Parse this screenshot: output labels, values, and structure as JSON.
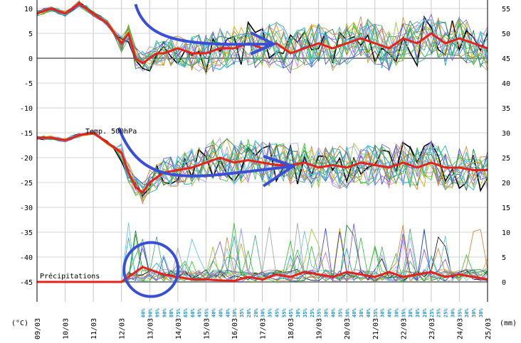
{
  "chart_data": {
    "type": "line",
    "x_dates": [
      "09/03",
      "10/03",
      "11/03",
      "12/03",
      "13/03",
      "14/03",
      "15/03",
      "16/03",
      "17/03",
      "18/03",
      "19/03",
      "20/03",
      "21/03",
      "22/03",
      "23/03",
      "24/03",
      "25/03"
    ],
    "left_ticks": [
      10,
      5,
      0,
      -5,
      -10,
      -15,
      -20,
      -25,
      -30,
      -35,
      -40,
      -45
    ],
    "right_ticks": [
      55,
      50,
      45,
      40,
      35,
      30,
      25,
      20,
      15,
      10,
      5,
      0
    ],
    "left_unit": "(°C)",
    "right_unit": "(mm)",
    "labels": {
      "temp500": "Temp. 500hPa",
      "precip": "Précipitations"
    },
    "precip_probabilities": [
      "60%",
      "90%",
      "95%",
      "90%",
      "80%",
      "75%",
      "65%",
      "60%",
      "45%",
      "45%",
      "40%",
      "40%",
      "40%",
      "30%",
      "35%",
      "20%",
      "20%",
      "30%",
      "35%",
      "45%",
      "55%",
      "45%",
      "30%",
      "35%",
      "25%",
      "35%",
      "30%",
      "40%",
      "35%",
      "30%",
      "40%",
      "30%",
      "40%",
      "35%",
      "30%",
      "40%",
      "30%",
      "35%",
      "30%",
      "30%",
      "20%",
      "25%",
      "25%",
      "25%",
      "30%",
      "35%",
      "30%",
      "30%",
      "30%"
    ],
    "series": [
      {
        "color": "#e8211c",
        "x": [
          0,
          0.5,
          1,
          1.5,
          2,
          2.5,
          3,
          3.25,
          3.5,
          3.75,
          4,
          4.25,
          4.5,
          5,
          5.5,
          6,
          6.5,
          7,
          7.5,
          8,
          8.5,
          9,
          9.5,
          10,
          10.5,
          11,
          11.5,
          12,
          12.5,
          13,
          13.5,
          14,
          14.5,
          15,
          15.5,
          16
        ],
        "y": [
          9,
          10,
          9,
          11,
          9,
          7,
          3,
          5,
          0,
          -1,
          0,
          1,
          1,
          2,
          1,
          1,
          2,
          2,
          3,
          2,
          3,
          1,
          2,
          3,
          2,
          3,
          4,
          3,
          2,
          4,
          3,
          5,
          3,
          4,
          3,
          2
        ]
      },
      {
        "color": "#e8211c",
        "x": [
          0,
          0.5,
          1,
          1.5,
          2,
          2.5,
          3,
          3.25,
          3.5,
          3.75,
          4,
          4.25,
          4.5,
          5,
          5.5,
          6,
          6.5,
          7,
          7.5,
          8,
          8.5,
          9,
          9.5,
          10,
          10.5,
          11,
          11.5,
          12,
          12.5,
          13,
          13.5,
          14,
          14.5,
          15,
          15.5,
          16
        ],
        "y": [
          -16,
          -16,
          -16.5,
          -15.5,
          -15,
          -17,
          -19,
          -23,
          -26,
          -27,
          -25,
          -24,
          -23,
          -22.5,
          -22,
          -21,
          -20,
          -21,
          -20.5,
          -21,
          -21.5,
          -21.5,
          -21,
          -22,
          -21.5,
          -22,
          -21,
          -21.5,
          -22,
          -21,
          -22,
          -21,
          -22,
          -22,
          -22.5,
          -22.5
        ]
      },
      {
        "color": "#e8211c",
        "x": [
          0,
          0.5,
          1,
          1.5,
          2,
          2.5,
          3,
          3.25,
          3.5,
          3.75,
          4,
          4.25,
          4.5,
          5,
          5.5,
          6,
          6.5,
          7,
          7.5,
          8,
          8.5,
          9,
          9.5,
          10,
          10.5,
          11,
          11.5,
          12,
          12.5,
          13,
          13.5,
          14,
          14.5,
          15,
          15.5,
          16
        ],
        "y": [
          0,
          0,
          0,
          0,
          0,
          0,
          0,
          1,
          2,
          3,
          2.5,
          2,
          1.5,
          1,
          0.5,
          0.5,
          0.3,
          0.2,
          1,
          0.5,
          1.5,
          1,
          2,
          1.5,
          1,
          2,
          1.5,
          1,
          2,
          1,
          1.5,
          2,
          1,
          1.5,
          1,
          0.5
        ]
      }
    ]
  }
}
